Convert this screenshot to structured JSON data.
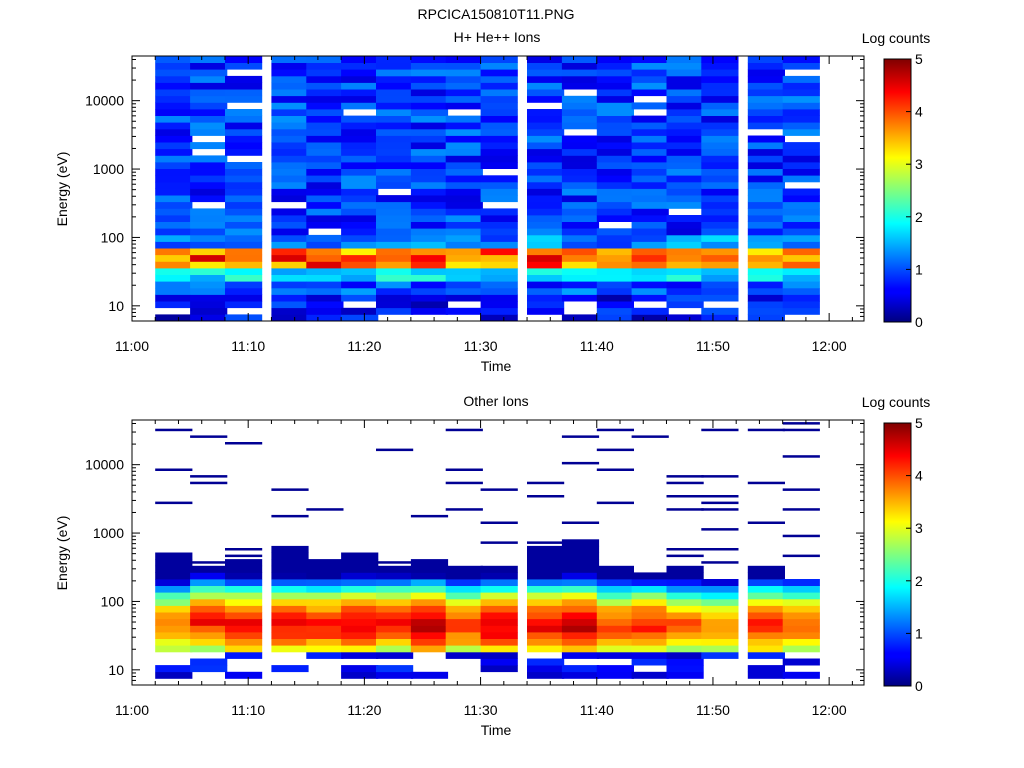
{
  "figure_title": "RPCICA150810T11.PNG",
  "chart_data": [
    {
      "type": "heatmap",
      "title": "H+ He++ Ions",
      "xlabel": "Time",
      "ylabel": "Energy (eV)",
      "colorbar_label": "Log counts",
      "colorbar_range": [
        0,
        5
      ],
      "colorbar_ticks": [
        "0",
        "1",
        "2",
        "3",
        "4",
        "5"
      ],
      "colormap": "jet",
      "x_range": [
        "11:00",
        "12:03"
      ],
      "x_ticks": [
        "11:00",
        "11:10",
        "11:20",
        "11:30",
        "11:40",
        "11:50",
        "12:00"
      ],
      "y_scale": "log",
      "y_range": [
        6,
        45000
      ],
      "y_ticks": [
        "10",
        "100",
        "1000",
        "10000"
      ],
      "time_bins": [
        "11:02",
        "11:05",
        "11:08",
        "11:12",
        "11:15",
        "11:18",
        "11:21",
        "11:24",
        "11:27",
        "11:30",
        "11:34",
        "11:37",
        "11:40",
        "11:43",
        "11:46",
        "11:49",
        "11:53",
        "11:56"
      ],
      "energy_band_counts": [
        {
          "energy_range_eV": "6-15",
          "log_counts": 0.6
        },
        {
          "energy_range_eV": "15-25",
          "log_counts": 1.0
        },
        {
          "energy_range_eV": "25-35",
          "log_counts": 1.8
        },
        {
          "energy_range_eV": "35-70",
          "log_counts": 3.6
        },
        {
          "energy_range_eV": "70-100",
          "log_counts": 1.3
        },
        {
          "energy_range_eV": "100-45000",
          "log_counts": 0.9
        }
      ]
    },
    {
      "type": "heatmap",
      "title": "Other Ions",
      "xlabel": "Time",
      "ylabel": "Energy (eV)",
      "colorbar_label": "Log counts",
      "colorbar_range": [
        0,
        5
      ],
      "colorbar_ticks": [
        "0",
        "1",
        "2",
        "3",
        "4",
        "5"
      ],
      "colormap": "jet",
      "x_range": [
        "11:00",
        "12:03"
      ],
      "x_ticks": [
        "11:00",
        "11:10",
        "11:20",
        "11:30",
        "11:40",
        "11:50",
        "12:00"
      ],
      "y_scale": "log",
      "y_range": [
        6,
        45000
      ],
      "y_ticks": [
        "10",
        "100",
        "1000",
        "10000"
      ],
      "time_bins": [
        "11:02",
        "11:05",
        "11:08",
        "11:12",
        "11:15",
        "11:18",
        "11:21",
        "11:24",
        "11:27",
        "11:30",
        "11:34",
        "11:37",
        "11:40",
        "11:43",
        "11:46",
        "11:49",
        "11:53",
        "11:56"
      ],
      "peak_energy_eV": [
        45,
        50,
        45,
        45,
        45,
        45,
        50,
        45,
        45,
        45,
        45,
        45,
        45,
        45,
        45,
        45,
        45,
        45
      ],
      "peak_log_counts": [
        3.9,
        4.3,
        4.5,
        4.4,
        4.4,
        4.6,
        4.3,
        4.7,
        4.2,
        4.6,
        4.5,
        4.7,
        4.1,
        4.3,
        4.0,
        3.8,
        4.3,
        4.0
      ],
      "upper_energy_eV": [
        500,
        350,
        420,
        650,
        380,
        560,
        360,
        440,
        300,
        320,
        600,
        900,
        330,
        270,
        360,
        200,
        370,
        200
      ],
      "sparse_high_energy_counts": "isolated bins at log counts ~0.1 between 500 and 40000 eV"
    }
  ]
}
